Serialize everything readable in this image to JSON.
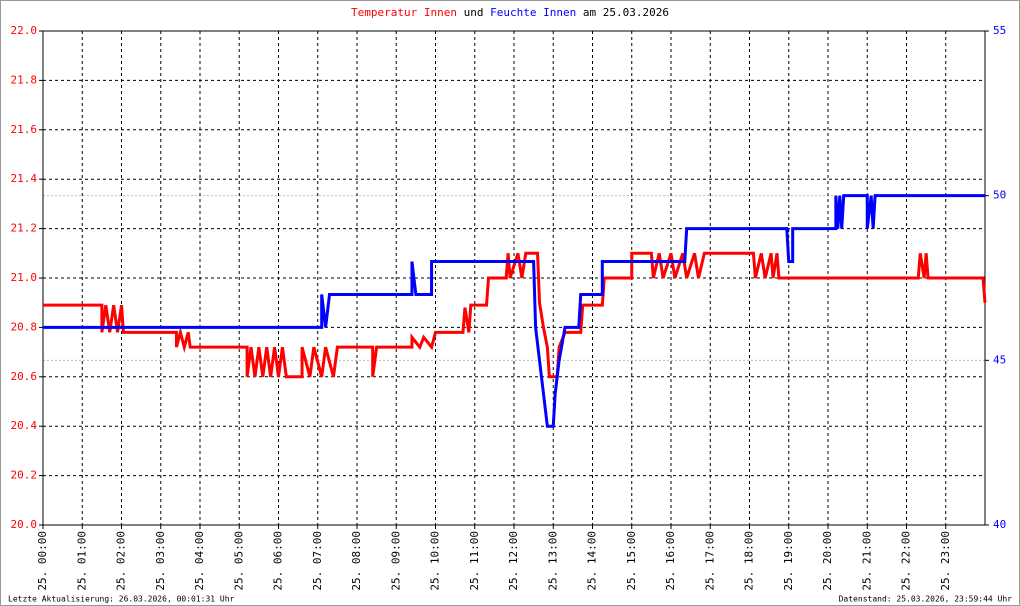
{
  "chart_data": {
    "type": "line",
    "title_connector": "und",
    "title_date": "am 25.03.2026",
    "footer_left": "Letzte Aktualisierung: 26.03.2026, 00:01:31 Uhr",
    "footer_right": "Datenstand: 25.03.2026, 23:59:44 Uhr",
    "xlim": [
      0,
      24
    ],
    "xticks": [
      {
        "value": 0,
        "label": "25. 00:00"
      },
      {
        "value": 1,
        "label": "25. 01:00"
      },
      {
        "value": 2,
        "label": "25. 02:00"
      },
      {
        "value": 3,
        "label": "25. 03:00"
      },
      {
        "value": 4,
        "label": "25. 04:00"
      },
      {
        "value": 5,
        "label": "25. 05:00"
      },
      {
        "value": 6,
        "label": "25. 06:00"
      },
      {
        "value": 7,
        "label": "25. 07:00"
      },
      {
        "value": 8,
        "label": "25. 08:00"
      },
      {
        "value": 9,
        "label": "25. 09:00"
      },
      {
        "value": 10,
        "label": "25. 10:00"
      },
      {
        "value": 11,
        "label": "25. 11:00"
      },
      {
        "value": 12,
        "label": "25. 12:00"
      },
      {
        "value": 13,
        "label": "25. 13:00"
      },
      {
        "value": 14,
        "label": "25. 14:00"
      },
      {
        "value": 15,
        "label": "25. 15:00"
      },
      {
        "value": 16,
        "label": "25. 16:00"
      },
      {
        "value": 17,
        "label": "25. 17:00"
      },
      {
        "value": 18,
        "label": "25. 18:00"
      },
      {
        "value": 19,
        "label": "25. 19:00"
      },
      {
        "value": 20,
        "label": "25. 20:00"
      },
      {
        "value": 21,
        "label": "25. 21:00"
      },
      {
        "value": 22,
        "label": "25. 22:00"
      },
      {
        "value": 23,
        "label": "25. 23:00"
      }
    ],
    "ylim": [
      20,
      22
    ],
    "yticks": [
      {
        "value": 20,
        "label": "20.0"
      },
      20.2,
      20.4,
      20.6,
      20.8,
      {
        "value": 21,
        "label": "21.0"
      },
      21.2,
      21.4,
      21.6,
      21.8,
      {
        "value": 22,
        "label": "22.0"
      }
    ],
    "y2lim": [
      40,
      55
    ],
    "y2ticks": [
      40,
      45,
      50,
      55
    ],
    "grid": true,
    "series": [
      {
        "name": "Temperatur Innen",
        "color": "#ff0000",
        "x": [
          0,
          1.5,
          1.5,
          1.6,
          1.7,
          1.8,
          1.9,
          2.0,
          2.05,
          3.4,
          3.4,
          3.5,
          3.6,
          3.7,
          3.75,
          5.2,
          5.2,
          5.3,
          5.4,
          5.5,
          5.6,
          5.7,
          5.8,
          5.9,
          6.0,
          6.1,
          6.2,
          6.6,
          6.6,
          6.8,
          6.9,
          7.1,
          7.2,
          7.4,
          7.5,
          7.7,
          8.4,
          8.4,
          8.5,
          9.4,
          9.4,
          9.6,
          9.7,
          9.9,
          10.0,
          10.7,
          10.75,
          10.85,
          10.9,
          11.3,
          11.35,
          11.8,
          11.85,
          11.9,
          12.1,
          12.2,
          12.3,
          12.6,
          12.65,
          12.75,
          12.85,
          12.9,
          13.1,
          13.15,
          13.3,
          13.7,
          13.75,
          14.25,
          14.3,
          15.0,
          15.0,
          15.5,
          15.55,
          15.7,
          15.8,
          16.0,
          16.1,
          16.3,
          16.4,
          16.6,
          16.7,
          16.85,
          18.1,
          18.15,
          18.3,
          18.4,
          18.55,
          18.6,
          18.7,
          18.75,
          22.3,
          22.35,
          22.45,
          22.5,
          22.55,
          23.95,
          24.0
        ],
        "values": [
          20.89,
          20.89,
          20.78,
          20.89,
          20.78,
          20.89,
          20.78,
          20.89,
          20.78,
          20.78,
          20.72,
          20.78,
          20.72,
          20.78,
          20.72,
          20.72,
          20.6,
          20.72,
          20.6,
          20.72,
          20.6,
          20.72,
          20.6,
          20.72,
          20.6,
          20.72,
          20.6,
          20.6,
          20.72,
          20.6,
          20.72,
          20.6,
          20.72,
          20.6,
          20.72,
          20.72,
          20.72,
          20.6,
          20.72,
          20.72,
          20.76,
          20.72,
          20.76,
          20.72,
          20.78,
          20.78,
          20.88,
          20.78,
          20.89,
          20.89,
          21.0,
          21.0,
          21.1,
          21.0,
          21.1,
          21.0,
          21.1,
          21.1,
          20.9,
          20.8,
          20.72,
          20.6,
          20.6,
          20.72,
          20.78,
          20.78,
          20.89,
          20.89,
          21.0,
          21.0,
          21.1,
          21.1,
          21.0,
          21.1,
          21.0,
          21.1,
          21.0,
          21.1,
          21.0,
          21.1,
          21.0,
          21.1,
          21.1,
          21.0,
          21.1,
          21.0,
          21.1,
          21.0,
          21.1,
          21.0,
          21.0,
          21.1,
          21.0,
          21.1,
          21.0,
          21.0,
          20.9
        ]
      },
      {
        "name": "Feuchte Innen",
        "color": "#0000ff",
        "axis": "y2",
        "x": [
          0,
          7.1,
          7.1,
          7.2,
          7.3,
          9.4,
          9.4,
          9.5,
          9.9,
          9.9,
          12.5,
          12.55,
          12.65,
          12.75,
          12.85,
          13.0,
          13.05,
          13.15,
          13.3,
          13.65,
          13.7,
          14.25,
          14.25,
          16.35,
          16.4,
          18.95,
          19.0,
          19.1,
          19.1,
          20.2,
          20.2,
          20.25,
          20.3,
          20.35,
          20.4,
          21.0,
          21.0,
          21.1,
          21.15,
          21.2,
          24
        ],
        "values": [
          46,
          46,
          47,
          46,
          47,
          47,
          48,
          47,
          47,
          48,
          48,
          46,
          45,
          44,
          43,
          43,
          44,
          45,
          46,
          46,
          47,
          47,
          48,
          48,
          49,
          49,
          48,
          48,
          49,
          49,
          50,
          49,
          50,
          49,
          50,
          50,
          49,
          50,
          49,
          50,
          50
        ]
      }
    ]
  }
}
